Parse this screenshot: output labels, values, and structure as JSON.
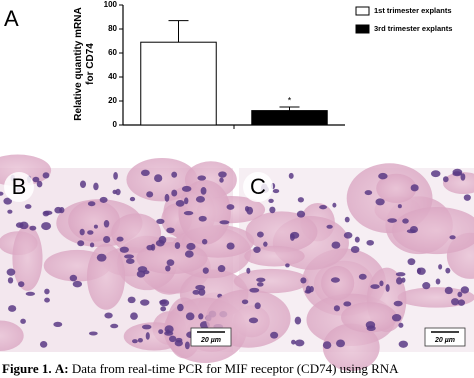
{
  "chart_data": {
    "type": "bar",
    "panel_label": "A",
    "ylabel": "Relative quantity mRNA for CD74",
    "categories": [
      null,
      null
    ],
    "series": [
      {
        "name": "1st trimester explants",
        "color": "#ffffff",
        "values": [
          69,
          null
        ],
        "errors": [
          18,
          null
        ]
      },
      {
        "name": "3rd trimester explants",
        "color": "#000000",
        "values": [
          null,
          12
        ],
        "errors": [
          null,
          3
        ]
      }
    ],
    "annotation": "*",
    "ylim": [
      0,
      100
    ],
    "yticks": [
      0,
      20,
      40,
      60,
      80,
      100
    ],
    "grid": false,
    "legend": "top-right"
  },
  "panels": [
    {
      "label": "B",
      "scale_bar": "20 µm"
    },
    {
      "label": "C",
      "scale_bar": "20 µm"
    }
  ],
  "caption": {
    "label": "Figure 1.",
    "panel": "A:",
    "text": "Data from real-time PCR for MIF receptor (CD74) using RNA"
  }
}
